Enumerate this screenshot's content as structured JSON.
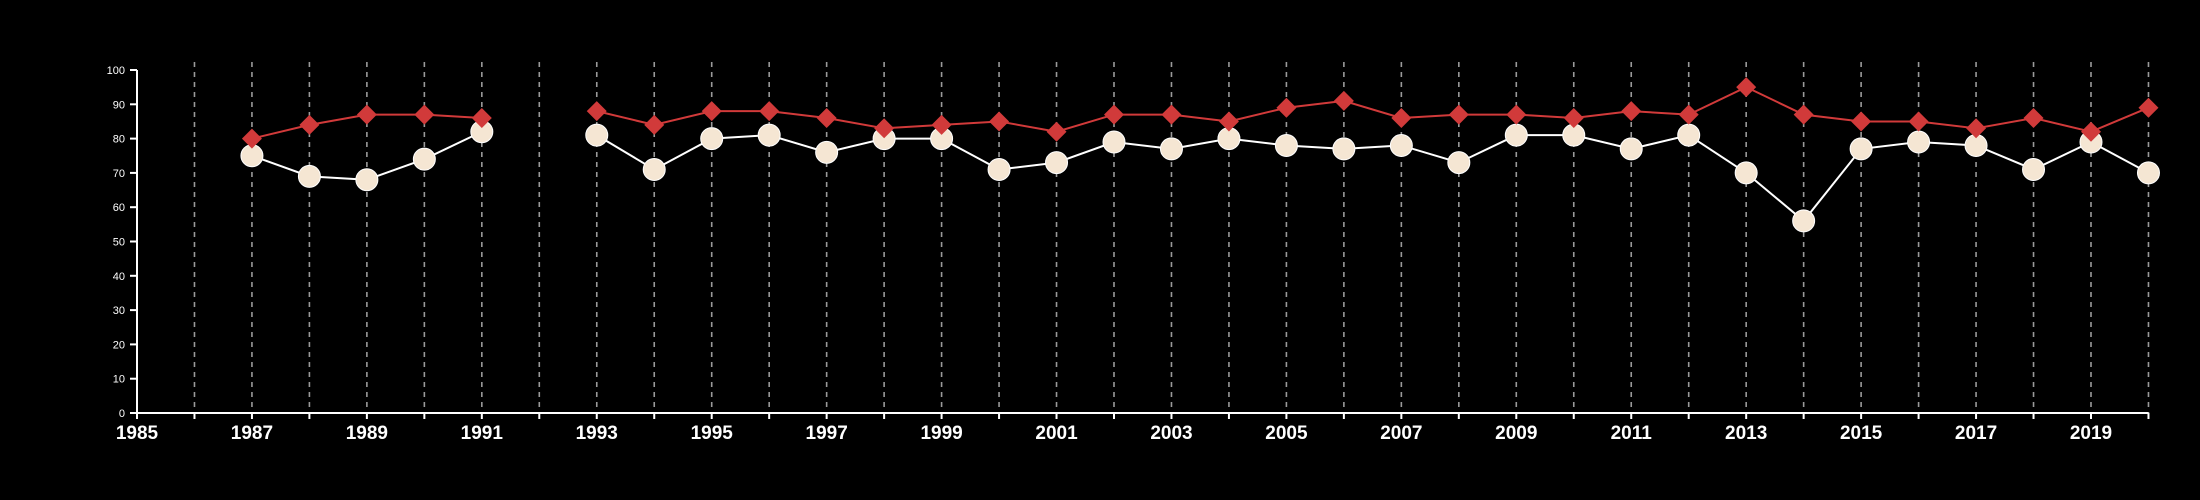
{
  "chart_data": {
    "type": "line",
    "title": "",
    "xlabel": "",
    "ylabel": "",
    "xlim": [
      1985,
      2020
    ],
    "ylim": [
      0,
      100
    ],
    "x_ticks": [
      "1985",
      "1987",
      "1989",
      "1991",
      "1993",
      "1995",
      "1997",
      "1999",
      "2001",
      "2003",
      "2005",
      "2007",
      "2009",
      "2011",
      "2013",
      "2015",
      "2017",
      "2019"
    ],
    "y_ticks": [
      "0",
      "10",
      "20",
      "30",
      "40",
      "50",
      "60",
      "70",
      "80",
      "90",
      "100"
    ],
    "vertical_grid": "dashed, every year",
    "horizontal_grid": false,
    "background": "#000000",
    "series": [
      {
        "marker": "diamond",
        "color": "#d13a3a",
        "x": [
          1987,
          1988,
          1989,
          1990,
          1991,
          1993,
          1994,
          1995,
          1996,
          1997,
          1998,
          1999,
          2000,
          2001,
          2002,
          2003,
          2004,
          2005,
          2006,
          2007,
          2008,
          2009,
          2010,
          2011,
          2012,
          2013,
          2014,
          2015,
          2016,
          2017,
          2018,
          2019,
          2020
        ],
        "values": [
          80,
          84,
          87,
          87,
          86,
          88,
          84,
          88,
          88,
          86,
          83,
          84,
          85,
          82,
          87,
          87,
          85,
          89,
          91,
          86,
          87,
          87,
          86,
          88,
          87,
          95,
          87,
          85,
          85,
          83,
          86,
          82,
          89
        ]
      },
      {
        "marker": "circle",
        "color": "#f5e6d3",
        "line_color": "#ffffff",
        "x": [
          1987,
          1988,
          1989,
          1990,
          1991,
          1993,
          1994,
          1995,
          1996,
          1997,
          1998,
          1999,
          2000,
          2001,
          2002,
          2003,
          2004,
          2005,
          2006,
          2007,
          2008,
          2009,
          2010,
          2011,
          2012,
          2013,
          2014,
          2015,
          2016,
          2017,
          2018,
          2019,
          2020
        ],
        "values": [
          75,
          69,
          68,
          74,
          82,
          81,
          71,
          80,
          81,
          76,
          80,
          80,
          71,
          73,
          79,
          77,
          80,
          78,
          77,
          78,
          73,
          81,
          81,
          77,
          81,
          70,
          56,
          77,
          79,
          78,
          71,
          79,
          70
        ]
      }
    ]
  }
}
